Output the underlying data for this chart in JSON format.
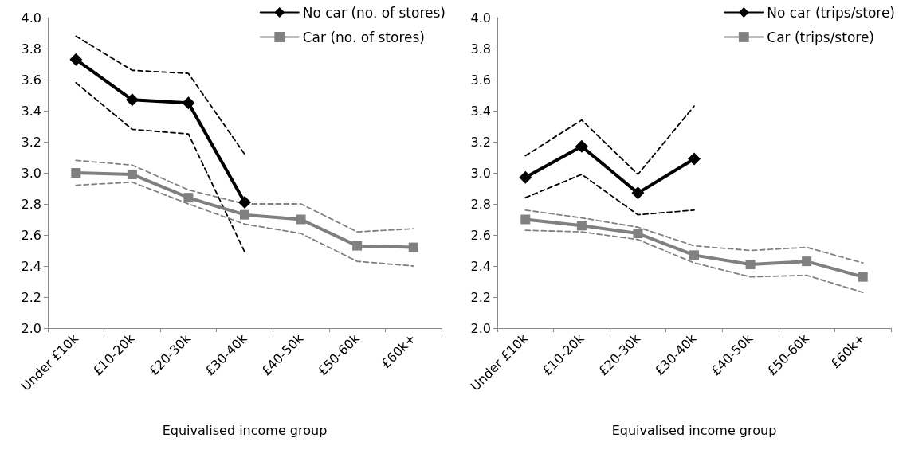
{
  "chart_data": [
    {
      "type": "line",
      "xlabel": "Equivalised income group",
      "categories": [
        "Under £10k",
        "£10-20k",
        "£20-30k",
        "£30-40k",
        "£40-50k",
        "£50-60k",
        "£60k+"
      ],
      "ylim": [
        2.0,
        4.0
      ],
      "yticks": [
        {
          "value": 2,
          "label": "2.0"
        },
        {
          "value": 2.2,
          "label": "2.2"
        },
        {
          "value": 2.4,
          "label": "2.4"
        },
        {
          "value": 2.6,
          "label": "2.6"
        },
        {
          "value": 2.8,
          "label": "2.8"
        },
        {
          "value": 3,
          "label": "3.0"
        },
        {
          "value": 3.2,
          "label": "3.2"
        },
        {
          "value": 3.4,
          "label": "3.4"
        },
        {
          "value": 3.6,
          "label": "3.6"
        },
        {
          "value": 3.8,
          "label": "3.8"
        },
        {
          "value": 4,
          "label": "4.0"
        }
      ],
      "grid": false,
      "legend": "top right",
      "series": [
        {
          "name": "No car (no. of stores)",
          "color": "#000000",
          "marker": "diamond",
          "line_style": "solid",
          "values": [
            3.73,
            3.47,
            3.45,
            2.81,
            null,
            null,
            null
          ]
        },
        {
          "name": "Car (no. of stores)",
          "color": "#808080",
          "marker": "square",
          "line_style": "solid",
          "values": [
            3.0,
            2.99,
            2.84,
            2.73,
            2.7,
            2.53,
            2.52
          ]
        },
        {
          "color": "#000000",
          "marker": "none",
          "line_style": "dashed",
          "values": [
            3.58,
            3.28,
            3.25,
            2.49,
            null,
            null,
            null
          ]
        },
        {
          "color": "#000000",
          "marker": "none",
          "line_style": "dashed",
          "values": [
            3.88,
            3.66,
            3.64,
            3.12,
            null,
            null,
            null
          ]
        },
        {
          "color": "#808080",
          "marker": "none",
          "line_style": "dashed",
          "values": [
            2.92,
            2.94,
            2.8,
            2.67,
            2.61,
            2.43,
            2.4
          ]
        },
        {
          "color": "#808080",
          "marker": "none",
          "line_style": "dashed",
          "values": [
            3.08,
            3.05,
            2.89,
            2.8,
            2.8,
            2.62,
            2.64
          ]
        }
      ]
    },
    {
      "type": "line",
      "xlabel": "Equivalised income group",
      "categories": [
        "Under £10k",
        "£10-20k",
        "£20-30k",
        "£30-40k",
        "£40-50k",
        "£50-60k",
        "£60k+"
      ],
      "ylim": [
        2.0,
        4.0
      ],
      "yticks": [
        {
          "value": 2,
          "label": "2.0"
        },
        {
          "value": 2.2,
          "label": "2.2"
        },
        {
          "value": 2.4,
          "label": "2.4"
        },
        {
          "value": 2.6,
          "label": "2.6"
        },
        {
          "value": 2.8,
          "label": "2.8"
        },
        {
          "value": 3,
          "label": "3.0"
        },
        {
          "value": 3.2,
          "label": "3.2"
        },
        {
          "value": 3.4,
          "label": "3.4"
        },
        {
          "value": 3.6,
          "label": "3.6"
        },
        {
          "value": 3.8,
          "label": "3.8"
        },
        {
          "value": 4,
          "label": "4.0"
        }
      ],
      "grid": false,
      "legend": "top right",
      "series": [
        {
          "name": "No car (trips/store)",
          "color": "#000000",
          "marker": "diamond",
          "line_style": "solid",
          "values": [
            2.97,
            3.17,
            2.87,
            3.09,
            null,
            null,
            null
          ]
        },
        {
          "name": "Car (trips/store)",
          "color": "#808080",
          "marker": "square",
          "line_style": "solid",
          "values": [
            2.7,
            2.66,
            2.61,
            2.47,
            2.41,
            2.43,
            2.33
          ]
        },
        {
          "color": "#000000",
          "marker": "none",
          "line_style": "dashed",
          "values": [
            2.84,
            2.99,
            2.73,
            2.76,
            null,
            null,
            null
          ]
        },
        {
          "color": "#000000",
          "marker": "none",
          "line_style": "dashed",
          "values": [
            3.11,
            3.34,
            2.99,
            3.43,
            null,
            null,
            null
          ]
        },
        {
          "color": "#808080",
          "marker": "none",
          "line_style": "dashed",
          "values": [
            2.63,
            2.62,
            2.57,
            2.42,
            2.33,
            2.34,
            2.23
          ]
        },
        {
          "color": "#808080",
          "marker": "none",
          "line_style": "dashed",
          "values": [
            2.76,
            2.71,
            2.65,
            2.53,
            2.5,
            2.52,
            2.42
          ]
        }
      ]
    }
  ]
}
